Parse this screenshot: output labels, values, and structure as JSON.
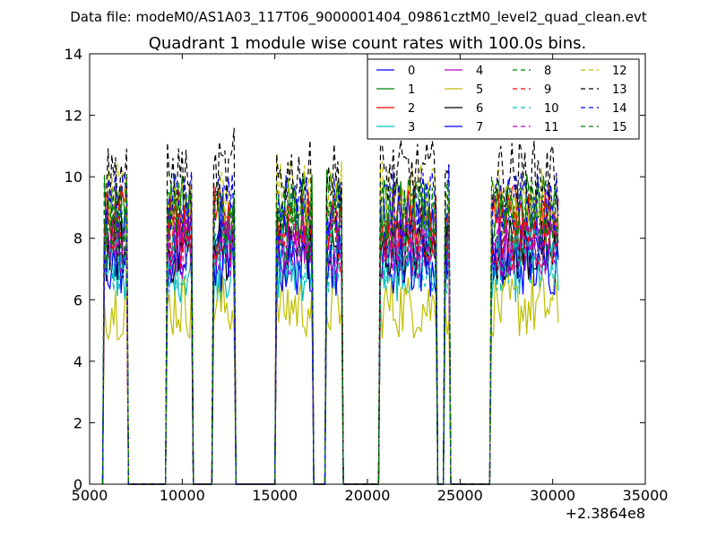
{
  "chart_data": {
    "type": "line",
    "suptitle": "Data file: modeM0/AS1A03_117T06_9000001404_09861cztM0_level2_quad_clean.evt",
    "title": "Quadrant 1 module wise count rates with 100.0s bins.",
    "xlabel": "",
    "ylabel": "",
    "offset_label": "+2.3864e8",
    "xlim": [
      5000,
      35000
    ],
    "ylim": [
      0,
      14
    ],
    "xticks": [
      5000,
      10000,
      15000,
      20000,
      25000,
      30000,
      35000
    ],
    "yticks": [
      0,
      2,
      4,
      6,
      8,
      10,
      12,
      14
    ],
    "grid": false,
    "legend_position": "top-right",
    "legend_columns": 4,
    "segments": [
      {
        "start": 5800,
        "end": 7000
      },
      {
        "start": 9200,
        "end": 10500
      },
      {
        "start": 11700,
        "end": 12800
      },
      {
        "start": 15100,
        "end": 17000
      },
      {
        "start": 17800,
        "end": 18600
      },
      {
        "start": 20700,
        "end": 23700
      },
      {
        "start": 24200,
        "end": 24400
      },
      {
        "start": 26700,
        "end": 30300
      }
    ],
    "series": [
      {
        "name": "0",
        "color": "#0000ff",
        "dashed": false,
        "level": 8.3
      },
      {
        "name": "1",
        "color": "#008000",
        "dashed": false,
        "level": 9.0
      },
      {
        "name": "2",
        "color": "#ff0000",
        "dashed": false,
        "level": 8.7
      },
      {
        "name": "3",
        "color": "#00bfbf",
        "dashed": false,
        "level": 7.0
      },
      {
        "name": "4",
        "color": "#bf00bf",
        "dashed": false,
        "level": 7.8
      },
      {
        "name": "5",
        "color": "#bfbf00",
        "dashed": false,
        "level": 5.8
      },
      {
        "name": "6",
        "color": "#000000",
        "dashed": false,
        "level": 7.6
      },
      {
        "name": "7",
        "color": "#0000ff",
        "dashed": false,
        "level": 7.2
      },
      {
        "name": "8",
        "color": "#008000",
        "dashed": true,
        "level": 8.2
      },
      {
        "name": "9",
        "color": "#ff0000",
        "dashed": true,
        "level": 8.0
      },
      {
        "name": "10",
        "color": "#00bfbf",
        "dashed": true,
        "level": 7.3
      },
      {
        "name": "11",
        "color": "#bf00bf",
        "dashed": true,
        "level": 7.7
      },
      {
        "name": "12",
        "color": "#bfbf00",
        "dashed": true,
        "level": 9.4
      },
      {
        "name": "13",
        "color": "#000000",
        "dashed": true,
        "level": 10.1
      },
      {
        "name": "14",
        "color": "#0000ff",
        "dashed": true,
        "level": 9.1
      },
      {
        "name": "15",
        "color": "#008000",
        "dashed": true,
        "level": 8.8
      }
    ]
  }
}
